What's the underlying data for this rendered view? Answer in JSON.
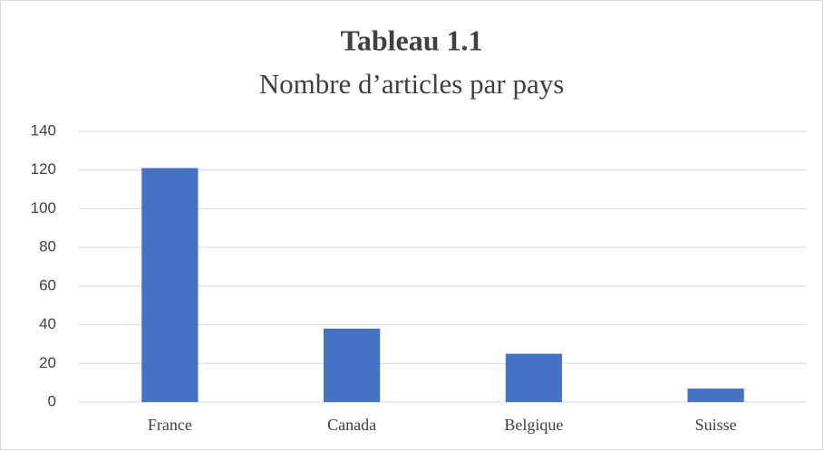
{
  "chart_data": {
    "type": "bar",
    "title": "Tableau 1.1",
    "subtitle": "Nombre d’articles par pays",
    "categories": [
      "France",
      "Canada",
      "Belgique",
      "Suisse"
    ],
    "values": [
      121,
      38,
      25,
      7
    ],
    "color": "#4472c4",
    "ylim": [
      0,
      140
    ],
    "yticks": [
      0,
      20,
      40,
      60,
      80,
      100,
      120,
      140
    ],
    "grid": true
  }
}
